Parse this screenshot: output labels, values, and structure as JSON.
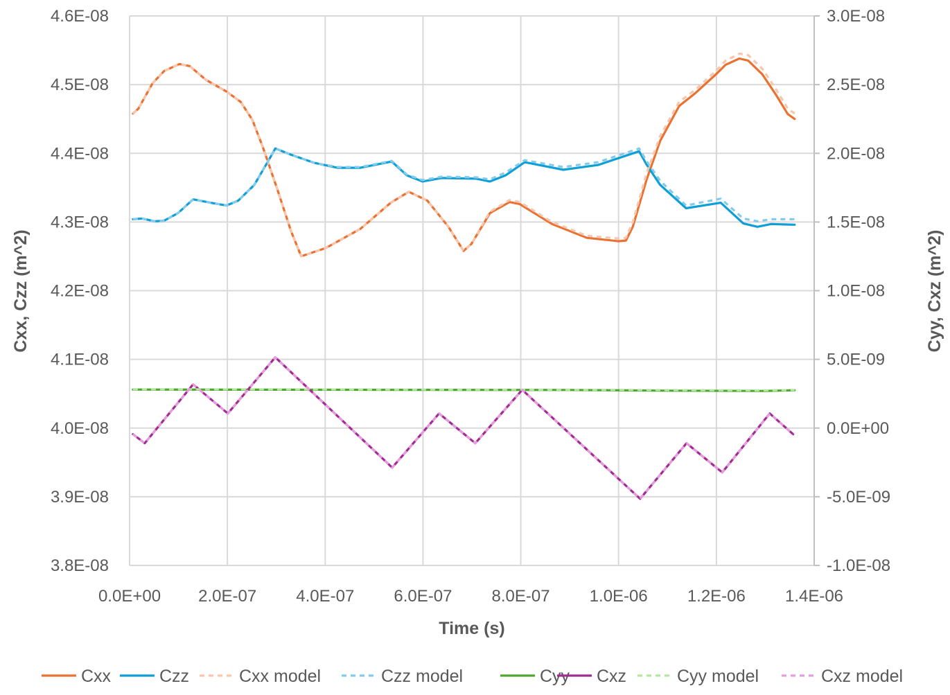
{
  "chart_data": {
    "type": "line",
    "title": "",
    "xlabel": "Time (s)",
    "ylabel_left": "Cxx, Czz (m^2)",
    "ylabel_right": "Cyy, Cxz (m^2)",
    "xlim": [
      0,
      1.4e-06
    ],
    "ylim_left": [
      3.8e-08,
      4.6e-08
    ],
    "ylim_right": [
      -1e-08,
      3e-08
    ],
    "grid": true,
    "legend_position": "bottom",
    "x_ticks": [
      "0.0E+00",
      "2.0E-07",
      "4.0E-07",
      "6.0E-07",
      "8.0E-07",
      "1.0E-06",
      "1.2E-06",
      "1.4E-06"
    ],
    "y_left_ticks": [
      "4.6E-08",
      "4.5E-08",
      "4.4E-08",
      "4.3E-08",
      "4.2E-08",
      "4.1E-08",
      "4.0E-08",
      "3.9E-08",
      "3.8E-08"
    ],
    "y_right_ticks": [
      "3.0E-08",
      "2.5E-08",
      "2.0E-08",
      "1.5E-08",
      "1.0E-08",
      "5.0E-09",
      "0.0E+00",
      "-5.0E-09",
      "-1.0E-08"
    ],
    "series": [
      {
        "name": "Cxx",
        "axis": "left",
        "color": "#E97132",
        "dashed": false,
        "x": [
          7e-09,
          1.8e-08,
          4.7e-08,
          7.1e-08,
          1.02e-07,
          1.23e-07,
          1.56e-07,
          1.98e-07,
          2.27e-07,
          2.51e-07,
          2.73e-07,
          3.02e-07,
          3.3e-07,
          3.51e-07,
          4.01e-07,
          4.72e-07,
          5.34e-07,
          5.71e-07,
          6.09e-07,
          6.52e-07,
          6.83e-07,
          6.99e-07,
          7.37e-07,
          7.77e-07,
          7.98e-07,
          8.64e-07,
          9.35e-07,
          1e-06,
          1.015e-06,
          1.029e-06,
          1.057e-06,
          1.085e-06,
          1.124e-06,
          1.156e-06,
          1.199e-06,
          1.219e-06,
          1.247e-06,
          1.265e-06,
          1.294e-06,
          1.322e-06,
          1.346e-06,
          1.36e-06
        ],
        "y": [
          4.458e-08,
          4.465e-08,
          4.502e-08,
          4.52e-08,
          4.53e-08,
          4.527e-08,
          4.507e-08,
          4.49e-08,
          4.475e-08,
          4.449e-08,
          4.408e-08,
          4.348e-08,
          4.287e-08,
          4.25e-08,
          4.262e-08,
          4.29e-08,
          4.328e-08,
          4.344e-08,
          4.331e-08,
          4.293e-08,
          4.258e-08,
          4.268e-08,
          4.313e-08,
          4.329e-08,
          4.326e-08,
          4.297e-08,
          4.277e-08,
          4.272e-08,
          4.273e-08,
          4.293e-08,
          4.361e-08,
          4.418e-08,
          4.469e-08,
          4.487e-08,
          4.515e-08,
          4.529e-08,
          4.538e-08,
          4.535e-08,
          4.515e-08,
          4.485e-08,
          4.457e-08,
          4.45e-08
        ]
      },
      {
        "name": "Czz",
        "axis": "left",
        "color": "#0F9ED5",
        "dashed": false,
        "x": [
          7e-09,
          2.6e-08,
          5.2e-08,
          7.1e-08,
          9.9e-08,
          1.3e-07,
          1.66e-07,
          1.98e-07,
          2.22e-07,
          2.55e-07,
          2.83e-07,
          2.98e-07,
          3.3e-07,
          3.78e-07,
          4.25e-07,
          4.72e-07,
          5.36e-07,
          5.67e-07,
          5.99e-07,
          6.38e-07,
          7.09e-07,
          7.37e-07,
          7.69e-07,
          8.08e-07,
          8.87e-07,
          9.58e-07,
          1e-06,
          1.042e-06,
          1.057e-06,
          1.085e-06,
          1.138e-06,
          1.209e-06,
          1.255e-06,
          1.284e-06,
          1.312e-06,
          1.36e-06
        ],
        "y": [
          4.304e-08,
          4.305e-08,
          4.301e-08,
          4.302e-08,
          4.313e-08,
          4.333e-08,
          4.328e-08,
          4.324e-08,
          4.331e-08,
          4.354e-08,
          4.388e-08,
          4.407e-08,
          4.398e-08,
          4.386e-08,
          4.379e-08,
          4.379e-08,
          4.388e-08,
          4.368e-08,
          4.359e-08,
          4.364e-08,
          4.363e-08,
          4.359e-08,
          4.368e-08,
          4.387e-08,
          4.376e-08,
          4.383e-08,
          4.393e-08,
          4.403e-08,
          4.384e-08,
          4.354e-08,
          4.32e-08,
          4.328e-08,
          4.298e-08,
          4.293e-08,
          4.297e-08,
          4.296e-08
        ]
      },
      {
        "name": "Cxx model",
        "axis": "left",
        "color": "#F6C6AD",
        "dashed": true,
        "x": [
          7e-09,
          1.8e-08,
          4.7e-08,
          7.1e-08,
          1.02e-07,
          1.23e-07,
          1.56e-07,
          1.98e-07,
          2.27e-07,
          2.51e-07,
          2.73e-07,
          3.02e-07,
          3.3e-07,
          3.51e-07,
          4.01e-07,
          4.72e-07,
          5.34e-07,
          5.71e-07,
          6.09e-07,
          6.52e-07,
          6.83e-07,
          6.99e-07,
          7.37e-07,
          7.77e-07,
          7.98e-07,
          8.64e-07,
          9.35e-07,
          1e-06,
          1.015e-06,
          1.029e-06,
          1.057e-06,
          1.085e-06,
          1.124e-06,
          1.156e-06,
          1.199e-06,
          1.219e-06,
          1.247e-06,
          1.265e-06,
          1.294e-06,
          1.322e-06,
          1.346e-06,
          1.36e-06
        ],
        "y": [
          4.458e-08,
          4.465e-08,
          4.502e-08,
          4.52e-08,
          4.53e-08,
          4.527e-08,
          4.507e-08,
          4.49e-08,
          4.475e-08,
          4.449e-08,
          4.408e-08,
          4.348e-08,
          4.287e-08,
          4.25e-08,
          4.262e-08,
          4.29e-08,
          4.328e-08,
          4.344e-08,
          4.331e-08,
          4.293e-08,
          4.258e-08,
          4.268e-08,
          4.315e-08,
          4.332e-08,
          4.329e-08,
          4.3e-08,
          4.28e-08,
          4.276e-08,
          4.277e-08,
          4.3e-08,
          4.37e-08,
          4.425e-08,
          4.475e-08,
          4.492e-08,
          4.52e-08,
          4.535e-08,
          4.545e-08,
          4.543e-08,
          4.523e-08,
          4.493e-08,
          4.465e-08,
          4.458e-08
        ]
      },
      {
        "name": "Czz model",
        "axis": "left",
        "color": "#83CBEB",
        "dashed": true,
        "x": [
          7e-09,
          2.6e-08,
          5.2e-08,
          7.1e-08,
          9.9e-08,
          1.3e-07,
          1.66e-07,
          1.98e-07,
          2.22e-07,
          2.55e-07,
          2.83e-07,
          2.98e-07,
          3.3e-07,
          3.78e-07,
          4.25e-07,
          4.72e-07,
          5.36e-07,
          5.67e-07,
          5.99e-07,
          6.38e-07,
          7.09e-07,
          7.37e-07,
          7.69e-07,
          8.08e-07,
          8.87e-07,
          9.58e-07,
          1e-06,
          1.042e-06,
          1.057e-06,
          1.085e-06,
          1.138e-06,
          1.209e-06,
          1.255e-06,
          1.284e-06,
          1.312e-06,
          1.36e-06
        ],
        "y": [
          4.304e-08,
          4.305e-08,
          4.301e-08,
          4.302e-08,
          4.313e-08,
          4.333e-08,
          4.328e-08,
          4.324e-08,
          4.331e-08,
          4.354e-08,
          4.388e-08,
          4.407e-08,
          4.398e-08,
          4.386e-08,
          4.38e-08,
          4.38e-08,
          4.389e-08,
          4.369e-08,
          4.361e-08,
          4.366e-08,
          4.365e-08,
          4.362e-08,
          4.372e-08,
          4.39e-08,
          4.38e-08,
          4.387e-08,
          4.397e-08,
          4.407e-08,
          4.389e-08,
          4.36e-08,
          4.324e-08,
          4.334e-08,
          4.305e-08,
          4.301e-08,
          4.304e-08,
          4.304e-08
        ]
      },
      {
        "name": "Cyy",
        "axis": "right",
        "color": "#4EA72E",
        "dashed": false,
        "x": [
          7e-09,
          3e-07,
          6e-07,
          9e-07,
          1.1e-06,
          1.3e-06,
          1.36e-06
        ],
        "y": [
          2.8e-09,
          2.79e-09,
          2.78e-09,
          2.77e-09,
          2.72e-09,
          2.7e-09,
          2.75e-09
        ]
      },
      {
        "name": "Cxz",
        "axis": "right",
        "color": "#A02B93",
        "dashed": false,
        "x": [
          7e-09,
          3.1e-08,
          1.3e-07,
          2.01e-07,
          2.98e-07,
          5.37e-07,
          6.33e-07,
          7.07e-07,
          8.03e-07,
          1.044e-06,
          1.139e-06,
          1.212e-06,
          1.309e-06,
          1.357e-06
        ],
        "y": [
          -4.5e-10,
          -1.1e-09,
          3.18e-09,
          1.06e-09,
          5.15e-09,
          -2.88e-09,
          1.06e-09,
          -1.1e-09,
          2.78e-09,
          -5.15e-09,
          -1.1e-09,
          -3.23e-09,
          1.06e-09,
          -4.5e-10
        ]
      },
      {
        "name": "Cyy model",
        "axis": "right",
        "color": "#B4E5A2",
        "dashed": true,
        "x": [
          7e-09,
          3e-07,
          6e-07,
          9e-07,
          1.1e-06,
          1.3e-06,
          1.36e-06
        ],
        "y": [
          2.82e-09,
          2.81e-09,
          2.8e-09,
          2.79e-09,
          2.76e-09,
          2.74e-09,
          2.77e-09
        ]
      },
      {
        "name": "Cxz model",
        "axis": "right",
        "color": "#E59EDD",
        "dashed": true,
        "x": [
          7e-09,
          3.1e-08,
          1.3e-07,
          2.01e-07,
          2.98e-07,
          5.37e-07,
          6.33e-07,
          7.07e-07,
          8.03e-07,
          1.044e-06,
          1.139e-06,
          1.212e-06,
          1.309e-06,
          1.357e-06
        ],
        "y": [
          -4.5e-10,
          -1.1e-09,
          3.18e-09,
          1.06e-09,
          5.15e-09,
          -2.88e-09,
          1.06e-09,
          -1.1e-09,
          2.78e-09,
          -5.15e-09,
          -1.1e-09,
          -3.23e-09,
          1.06e-09,
          -4.5e-10
        ]
      }
    ]
  }
}
